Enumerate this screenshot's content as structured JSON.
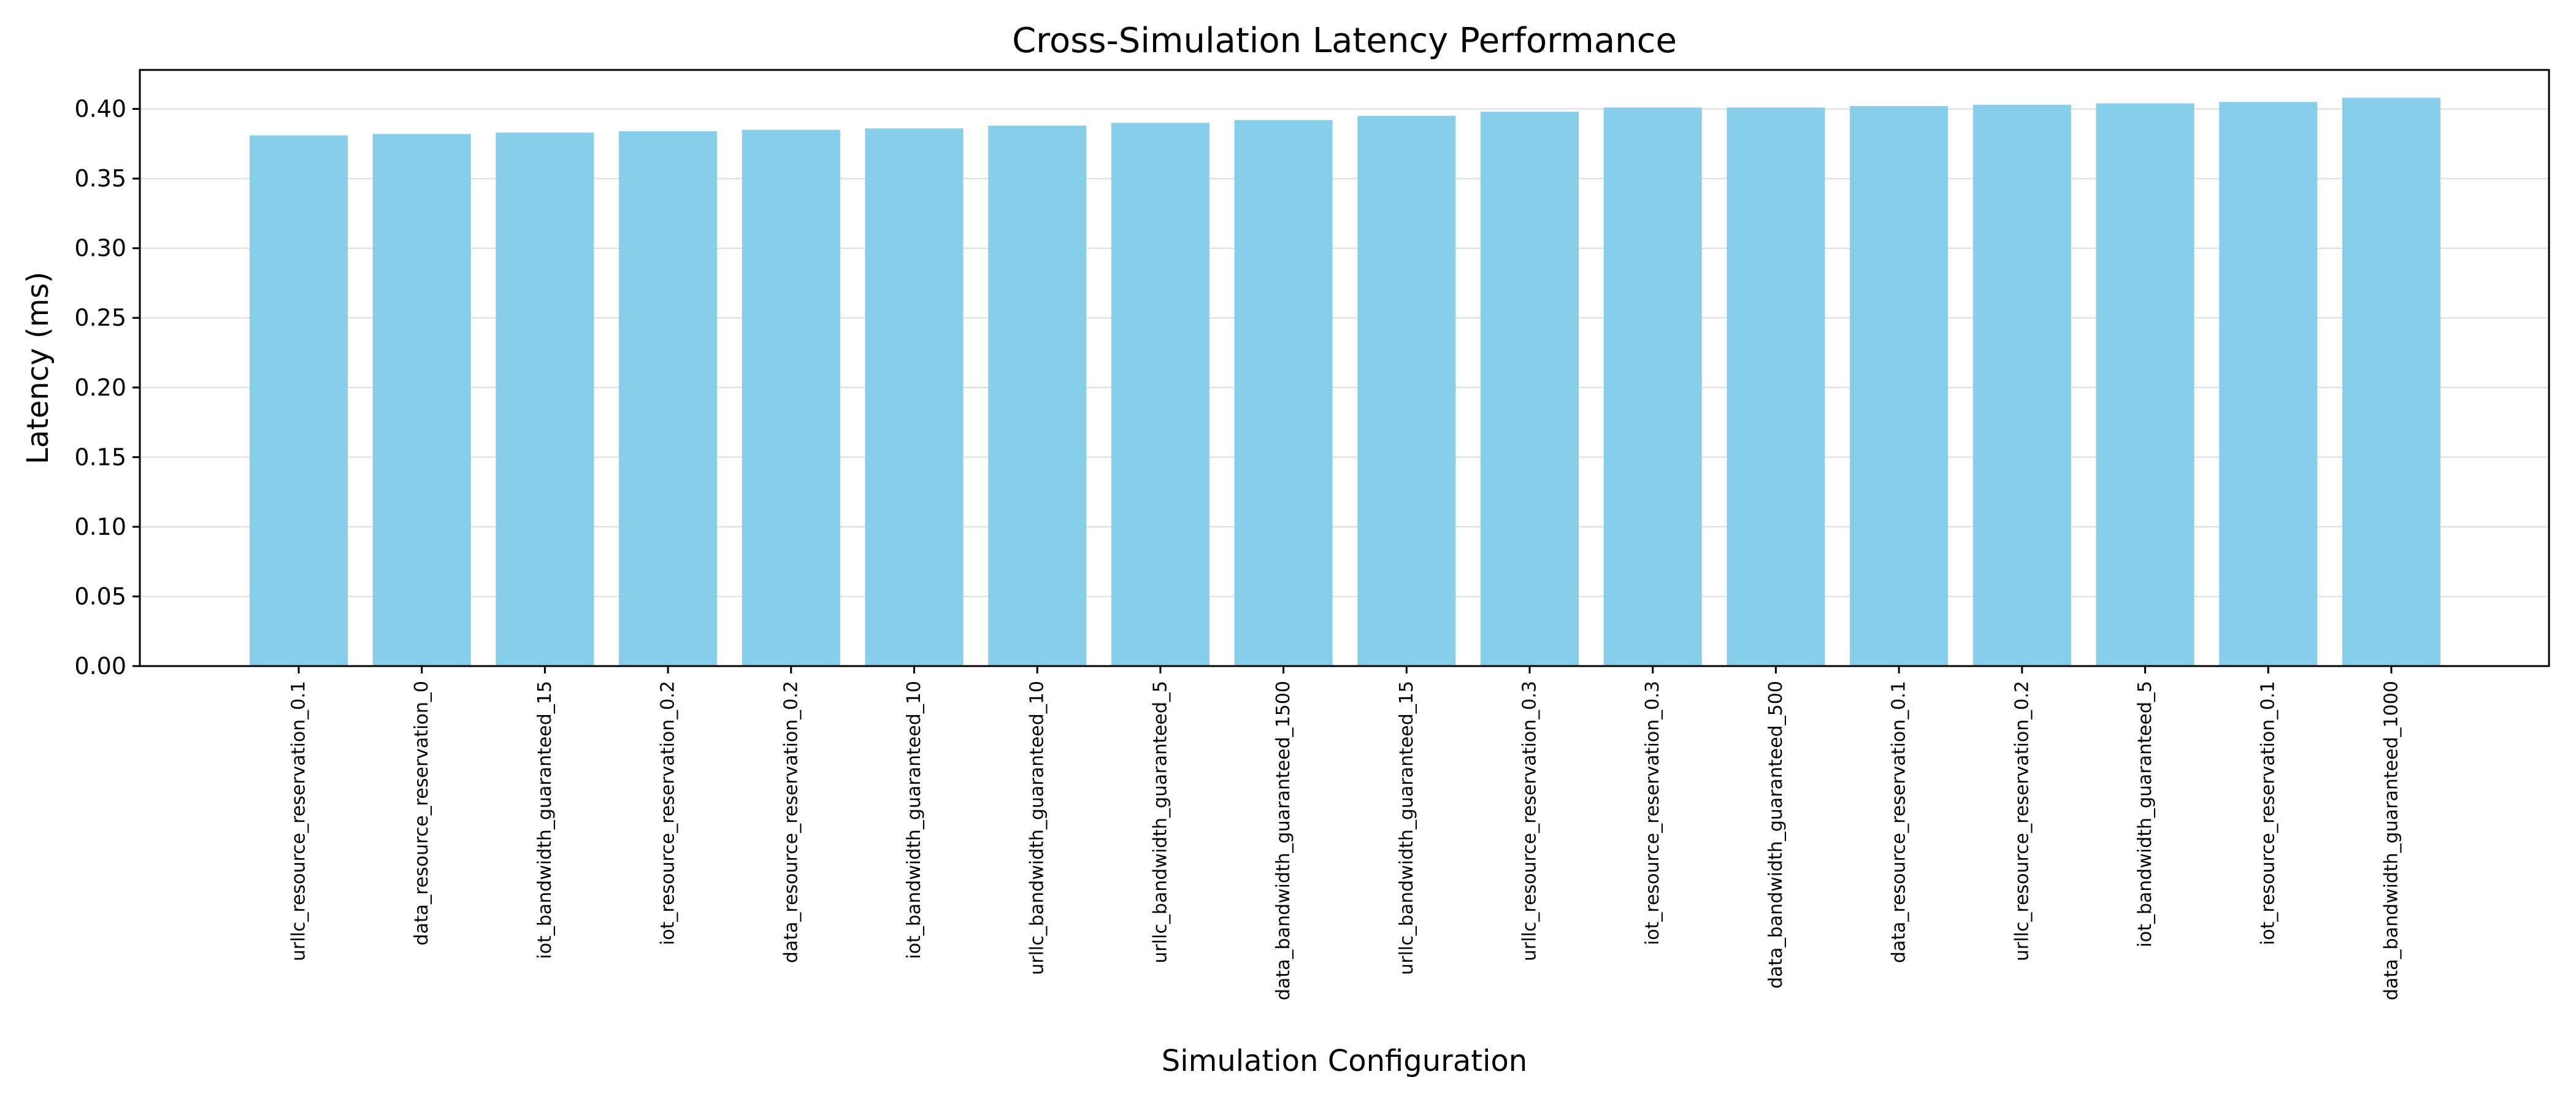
{
  "chart_data": {
    "type": "bar",
    "title": "Cross-Simulation Latency Performance",
    "xlabel": "Simulation Configuration",
    "ylabel": "Latency (ms)",
    "ylim": [
      0,
      0.428
    ],
    "yticks": [
      "0.00",
      "0.05",
      "0.10",
      "0.15",
      "0.20",
      "0.25",
      "0.30",
      "0.35",
      "0.40"
    ],
    "grid": "y",
    "bar_color": "#87CEEB",
    "categories": [
      "urllc_resource_reservation_0.1",
      "data_resource_reservation_0",
      "iot_bandwidth_guaranteed_15",
      "iot_resource_reservation_0.2",
      "data_resource_reservation_0.2",
      "iot_bandwidth_guaranteed_10",
      "urllc_bandwidth_guaranteed_10",
      "urllc_bandwidth_guaranteed_5",
      "data_bandwidth_guaranteed_1500",
      "urllc_bandwidth_guaranteed_15",
      "urllc_resource_reservation_0.3",
      "iot_resource_reservation_0.3",
      "data_bandwidth_guaranteed_500",
      "data_resource_reservation_0.1",
      "urllc_resource_reservation_0.2",
      "iot_bandwidth_guaranteed_5",
      "iot_resource_reservation_0.1",
      "data_bandwidth_guaranteed_1000"
    ],
    "values": [
      0.381,
      0.382,
      0.383,
      0.384,
      0.385,
      0.386,
      0.388,
      0.39,
      0.392,
      0.395,
      0.398,
      0.401,
      0.401,
      0.402,
      0.403,
      0.404,
      0.405,
      0.408
    ]
  }
}
